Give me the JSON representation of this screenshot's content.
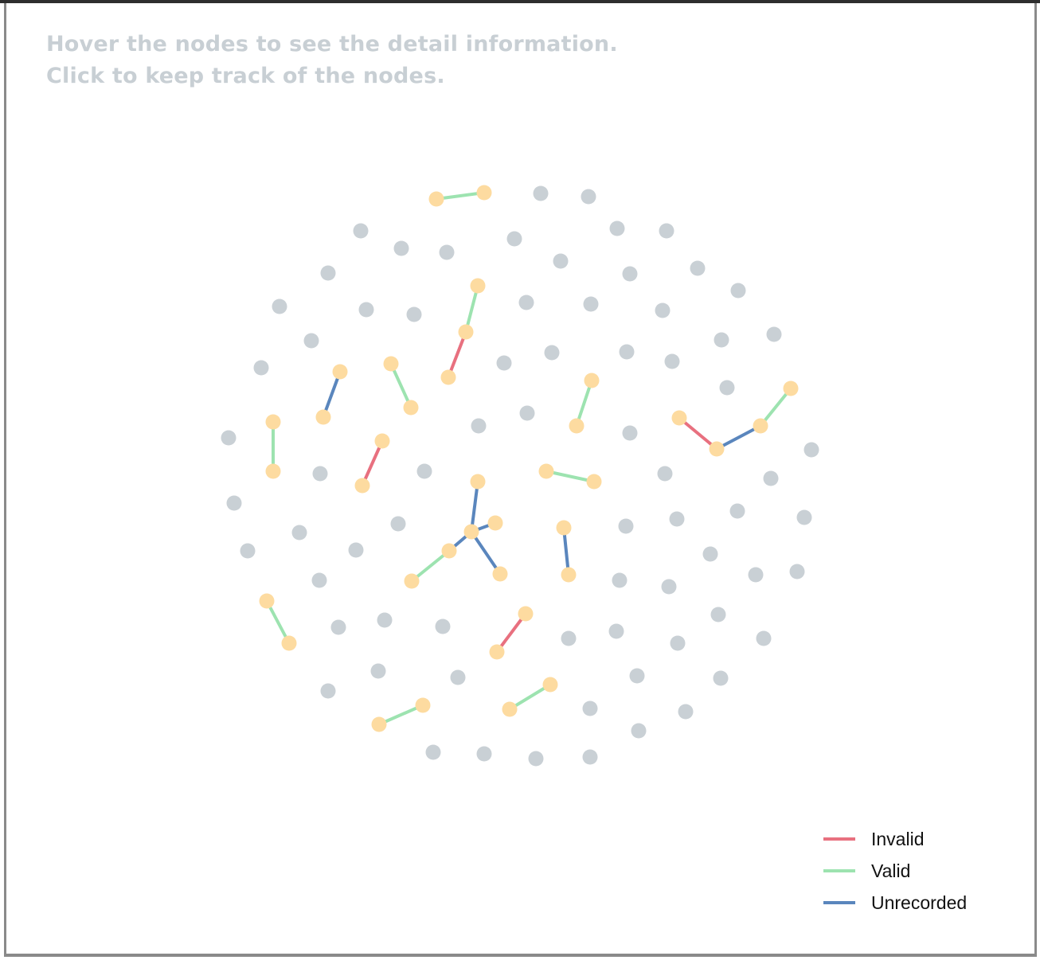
{
  "instructions": {
    "line1": "Hover the nodes to see the detail information.",
    "line2": "Click to keep track of the nodes."
  },
  "colors": {
    "idle_node": "#c9d0d5",
    "linked_node": "#fddba0",
    "invalid": "#e8707f",
    "valid": "#9de3b0",
    "unrecorded": "#5a86bd"
  },
  "legend": [
    {
      "label": "Invalid",
      "color": "#e8707f"
    },
    {
      "label": "Valid",
      "color": "#9de3b0"
    },
    {
      "label": "Unrecorded",
      "color": "#5a86bd"
    }
  ]
}
